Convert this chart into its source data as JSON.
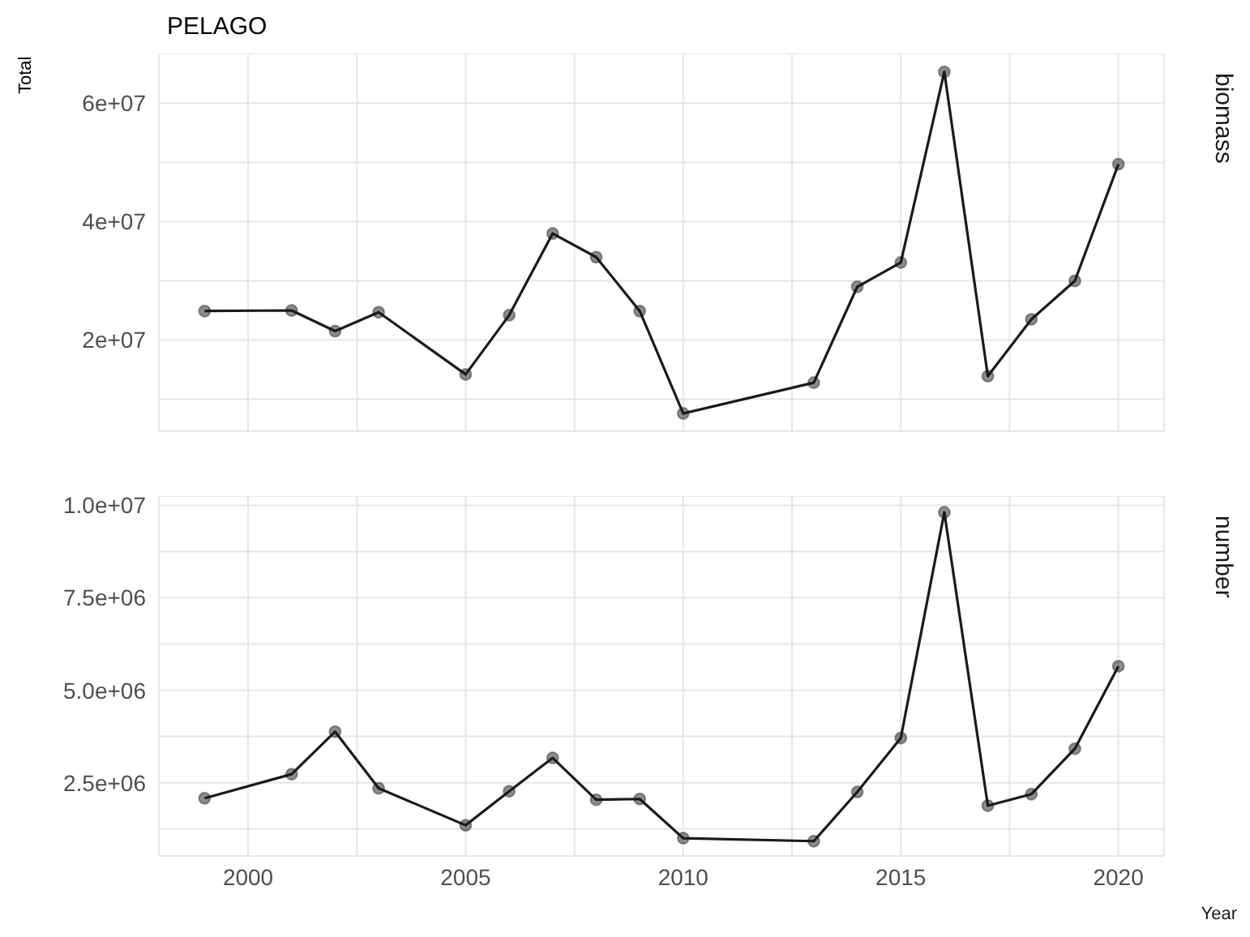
{
  "chart_data": [
    {
      "type": "line",
      "title": "PELAGO",
      "ylabel": "Total",
      "annotations": [
        "biomass"
      ],
      "tick_labels": "y",
      "grid": true,
      "marker": "circle",
      "line_style": "solid",
      "x": [
        1999,
        2001,
        2002,
        2003,
        2005,
        2006,
        2007,
        2008,
        2009,
        2010,
        2013,
        2014,
        2015,
        2016,
        2017,
        2018,
        2019,
        2020
      ],
      "series": [
        {
          "color": "#1a1a1a",
          "values": [
            24900000,
            25000000,
            21500000,
            24700000,
            14200000,
            24200000,
            38000000,
            34000000,
            24900000,
            7600000,
            12800000,
            29000000,
            33100000,
            65300000,
            13900000,
            23500000,
            30000000,
            49700000
          ]
        }
      ],
      "xlim": [
        1997.95,
        2021.05
      ],
      "xticks": [
        {
          "value": 2000,
          "label": null
        },
        {
          "value": 2002.5,
          "label": null
        },
        {
          "value": 2005,
          "label": null
        },
        {
          "value": 2007.5,
          "label": null
        },
        {
          "value": 2010,
          "label": null
        },
        {
          "value": 2012.5,
          "label": null
        },
        {
          "value": 2015,
          "label": null
        },
        {
          "value": 2017.5,
          "label": null
        },
        {
          "value": 2020,
          "label": null
        }
      ],
      "ylim": [
        4600000,
        68400000
      ],
      "yticks": [
        {
          "value": 10000000,
          "label": null
        },
        {
          "value": 20000000,
          "label": "2e+07"
        },
        {
          "value": 30000000,
          "label": null
        },
        {
          "value": 40000000,
          "label": "4e+07"
        },
        {
          "value": 50000000,
          "label": null
        },
        {
          "value": 60000000,
          "label": "6e+07"
        }
      ]
    },
    {
      "type": "line",
      "xlabel": "Year",
      "annotations": [
        "number"
      ],
      "grid": true,
      "marker": "circle",
      "line_style": "solid",
      "x": [
        1999,
        2001,
        2002,
        2003,
        2005,
        2006,
        2007,
        2008,
        2009,
        2010,
        2013,
        2014,
        2015,
        2016,
        2017,
        2018,
        2019,
        2020
      ],
      "series": [
        {
          "color": "#1a1a1a",
          "values": [
            2080000,
            2730000,
            3880000,
            2350000,
            1350000,
            2270000,
            3170000,
            2040000,
            2060000,
            1000000,
            920000,
            2250000,
            3710000,
            9810000,
            1880000,
            2190000,
            3420000,
            5650000
          ]
        }
      ],
      "xlim": [
        1997.95,
        2021.05
      ],
      "xticks": [
        2000,
        {
          "value": 2002.5,
          "label": null
        },
        2005,
        {
          "value": 2007.5,
          "label": null
        },
        2010,
        {
          "value": 2012.5,
          "label": null
        },
        2015,
        {
          "value": 2017.5,
          "label": null
        },
        2020
      ],
      "ylim": [
        520000,
        10250000
      ],
      "yticks": [
        {
          "value": 1250000,
          "label": null
        },
        {
          "value": 2500000,
          "label": "2.5e+06"
        },
        {
          "value": 3750000,
          "label": null
        },
        {
          "value": 5000000,
          "label": "5.0e+06"
        },
        {
          "value": 6250000,
          "label": null
        },
        {
          "value": 7500000,
          "label": "7.5e+06"
        },
        {
          "value": 8750000,
          "label": null
        },
        {
          "value": 10000000,
          "label": "1.0e+07"
        }
      ]
    }
  ]
}
